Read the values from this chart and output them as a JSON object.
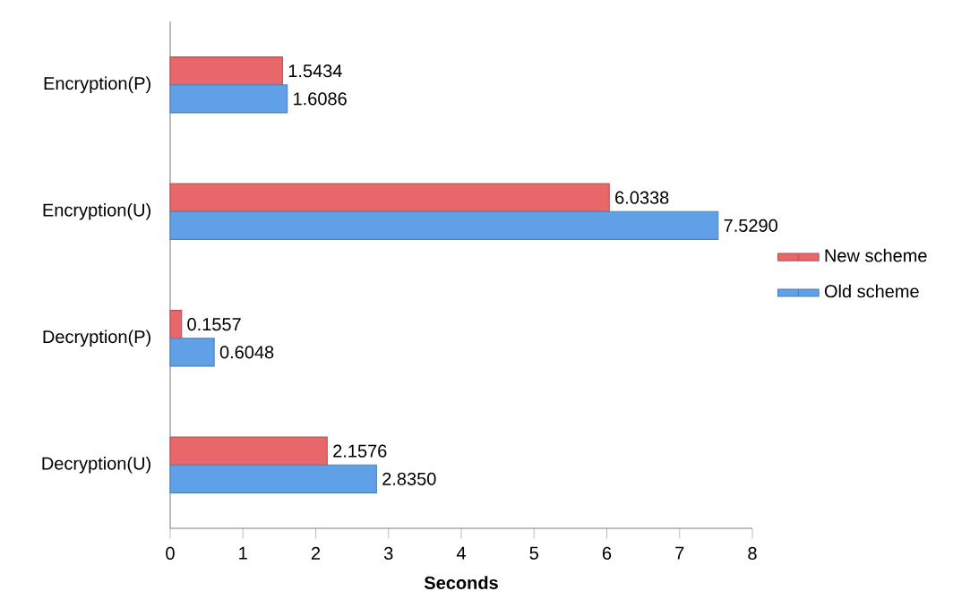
{
  "chart_data": {
    "type": "bar",
    "orientation": "horizontal",
    "xlabel": "Seconds",
    "categories": [
      "Encryption(P)",
      "Encryption(U)",
      "Decryption(P)",
      "Decryption(U)"
    ],
    "series": [
      {
        "name": "New scheme",
        "color": "#e8676a",
        "values": [
          1.5434,
          6.0338,
          0.1557,
          2.1576
        ],
        "value_labels": [
          "1.5434",
          "6.0338",
          "0.1557",
          "2.1576"
        ]
      },
      {
        "name": "Old scheme",
        "color": "#5fa0e6",
        "values": [
          1.6086,
          7.529,
          0.6048,
          2.835
        ],
        "value_labels": [
          "1.6086",
          "7.5290",
          "0.6048",
          "2.8350"
        ]
      }
    ],
    "xlim": [
      0,
      8
    ],
    "xticks": [
      0,
      1,
      2,
      3,
      4,
      5,
      6,
      7,
      8
    ],
    "legend": "right"
  }
}
